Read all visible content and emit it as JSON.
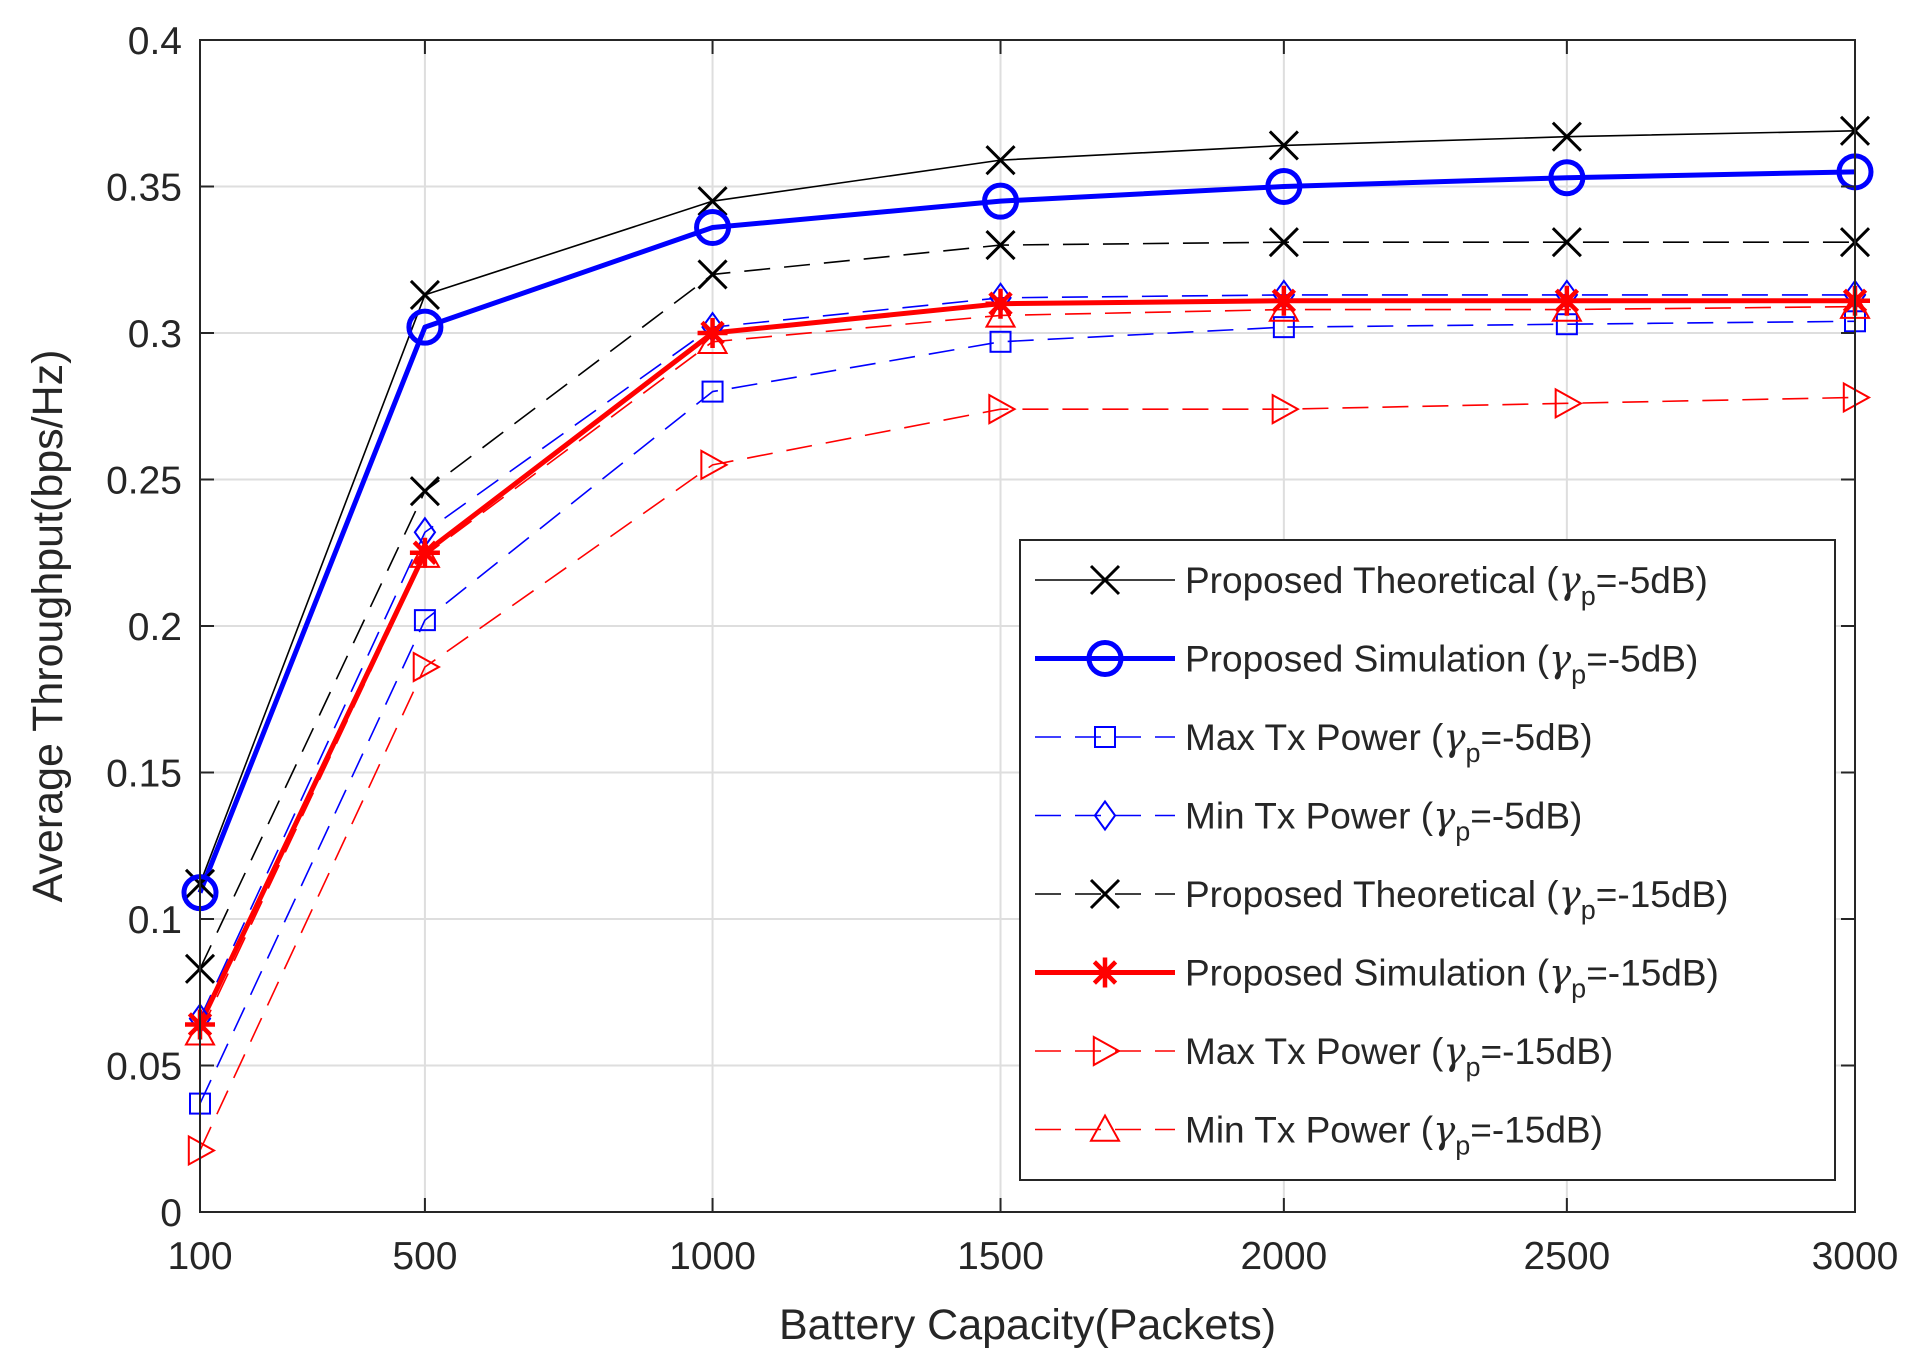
{
  "chart_data": {
    "type": "line",
    "xlabel": "Battery Capacity(Packets)",
    "ylabel": "Average Throughput(bps/Hz)",
    "x": [
      100,
      500,
      1000,
      1500,
      2000,
      2500,
      3000
    ],
    "x_tick_labels": [
      "100",
      "500",
      "1000",
      "1500",
      "2000",
      "2500",
      "3000"
    ],
    "ylim": [
      0,
      0.4
    ],
    "y_ticks": [
      0,
      0.05,
      0.1,
      0.15,
      0.2,
      0.25,
      0.3,
      0.35,
      0.4
    ],
    "y_tick_labels": [
      "0",
      "0.05",
      "0.1",
      "0.15",
      "0.2",
      "0.25",
      "0.3",
      "0.35",
      "0.4"
    ],
    "grid": true,
    "legend_position": "bottom-right",
    "series": [
      {
        "label": {
          "main": "Proposed Theoretical (",
          "greek": "γ",
          "sub": "p",
          "tail": "=-5dB)"
        },
        "color": "#000000",
        "dash": "solid",
        "marker": "x",
        "width": 1.6,
        "values": [
          0.112,
          0.313,
          0.345,
          0.359,
          0.364,
          0.367,
          0.369
        ]
      },
      {
        "label": {
          "main": "Proposed Simulation (",
          "greek": "γ",
          "sub": "p",
          "tail": "=-5dB)"
        },
        "color": "#0000ff",
        "dash": "solid",
        "marker": "circle",
        "width": 5,
        "values": [
          0.109,
          0.302,
          0.336,
          0.345,
          0.35,
          0.353,
          0.355
        ]
      },
      {
        "label": {
          "main": "Max Tx Power (",
          "greek": "γ",
          "sub": "p",
          "tail": "=-5dB)"
        },
        "color": "#0000ff",
        "dash": "dashed",
        "marker": "square",
        "width": 1.6,
        "values": [
          0.037,
          0.202,
          0.28,
          0.297,
          0.302,
          0.303,
          0.304
        ]
      },
      {
        "label": {
          "main": "Min Tx Power (",
          "greek": "γ",
          "sub": "p",
          "tail": "=-5dB)"
        },
        "color": "#0000ff",
        "dash": "dashed",
        "marker": "diamond",
        "width": 1.6,
        "values": [
          0.066,
          0.232,
          0.302,
          0.312,
          0.313,
          0.313,
          0.313
        ]
      },
      {
        "label": {
          "main": "Proposed Theoretical (",
          "greek": "γ",
          "sub": "p",
          "tail": "=-15dB)"
        },
        "color": "#000000",
        "dash": "dashed",
        "marker": "x",
        "width": 1.6,
        "values": [
          0.083,
          0.246,
          0.32,
          0.33,
          0.331,
          0.331,
          0.331
        ]
      },
      {
        "label": {
          "main": "Proposed Simulation (",
          "greek": "γ",
          "sub": "p",
          "tail": "=-15dB)"
        },
        "color": "#ff0000",
        "dash": "solid",
        "marker": "asterisk",
        "width": 5,
        "values": [
          0.064,
          0.225,
          0.3,
          0.31,
          0.311,
          0.311,
          0.311
        ]
      },
      {
        "label": {
          "main": "Max Tx Power (",
          "greek": "γ",
          "sub": "p",
          "tail": "=-15dB)"
        },
        "color": "#ff0000",
        "dash": "dashed",
        "marker": "triangle-right",
        "width": 1.6,
        "values": [
          0.021,
          0.186,
          0.255,
          0.274,
          0.274,
          0.276,
          0.278
        ]
      },
      {
        "label": {
          "main": "Min Tx Power (",
          "greek": "γ",
          "sub": "p",
          "tail": "=-15dB)"
        },
        "color": "#ff0000",
        "dash": "dashed",
        "marker": "triangle-up",
        "width": 1.6,
        "values": [
          0.061,
          0.224,
          0.297,
          0.306,
          0.308,
          0.308,
          0.309
        ]
      }
    ]
  }
}
